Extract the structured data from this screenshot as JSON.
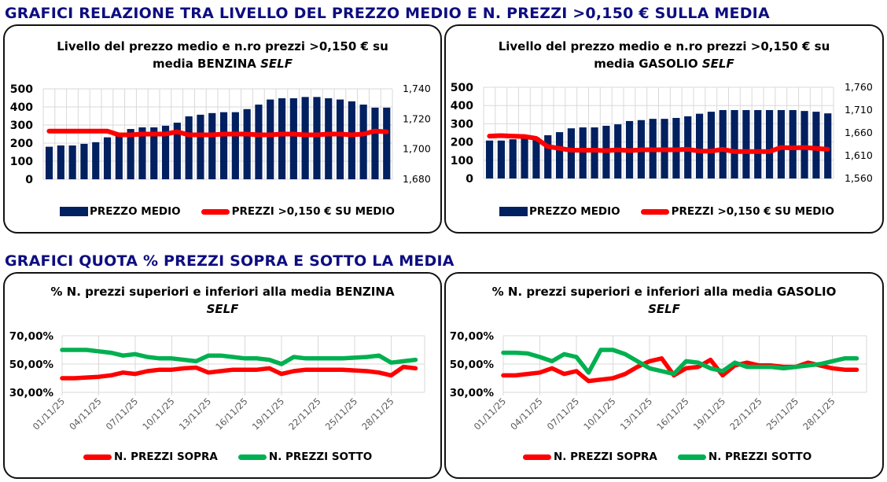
{
  "headings": {
    "top": "GRAFICI RELAZIONE TRA LIVELLO DEL PREZZO MEDIO E N. PREZZI >0,150 € SULLA MEDIA",
    "bottom": "GRAFICI QUOTA % PREZZI SOPRA E SOTTO LA MEDIA"
  },
  "colors": {
    "heading": "#0d0d80",
    "bar": "#002060",
    "red": "#ff0000",
    "green": "#00b050",
    "grid": "#d9d9d9"
  },
  "chart_data": [
    {
      "type": "bar",
      "title_line1": "Livello del prezzo medio e n.ro prezzi >0,150 € su",
      "title_line2": "media BENZINA ",
      "title_italic": "SELF",
      "legend": [
        "PREZZO MEDIO",
        "PREZZI >0,150 € SU MEDIO"
      ],
      "left_ticks": [
        "500",
        "400",
        "300",
        "200",
        "100",
        "0"
      ],
      "right_ticks": [
        "1,740",
        "1,720",
        "1,700",
        "1,680"
      ],
      "ylim": [
        0,
        500
      ],
      "y2lim": [
        1680,
        1740
      ],
      "bars": [
        180,
        187,
        187,
        196,
        205,
        232,
        240,
        278,
        287,
        287,
        296,
        313,
        348,
        357,
        366,
        371,
        371,
        388,
        413,
        441,
        448,
        448,
        455,
        455,
        448,
        441,
        431,
        413,
        396,
        396
      ],
      "line": [
        1712,
        1712,
        1712,
        1712,
        1712,
        1712,
        1709.5,
        1709.5,
        1710,
        1710,
        1710,
        1711.5,
        1709.5,
        1709.5,
        1709.5,
        1710,
        1710,
        1710,
        1709.5,
        1709.5,
        1710,
        1710,
        1709.5,
        1709.5,
        1710,
        1710,
        1709.5,
        1710,
        1712,
        1711.5
      ]
    },
    {
      "type": "bar",
      "title_line1": "Livello del prezzo medio e n.ro prezzi >0,150 € su",
      "title_line2": "media GASOLIO ",
      "title_italic": "SELF",
      "legend": [
        "PREZZO MEDIO",
        "PREZZI >0,150 € SU MEDIO"
      ],
      "left_ticks": [
        "500",
        "400",
        "300",
        "200",
        "100",
        "0"
      ],
      "right_ticks": [
        "1,760",
        "1,710",
        "1,660",
        "1,610",
        "1,560"
      ],
      "ylim": [
        0,
        500
      ],
      "y2lim": [
        1560,
        1760
      ],
      "bars": [
        208,
        208,
        215,
        220,
        225,
        237,
        254,
        275,
        280,
        280,
        289,
        297,
        315,
        320,
        327,
        327,
        332,
        341,
        355,
        366,
        375,
        375,
        375,
        375,
        375,
        375,
        375,
        370,
        366,
        357
      ],
      "line": [
        1653,
        1654,
        1653,
        1652,
        1648,
        1630,
        1626,
        1622,
        1622,
        1622,
        1621,
        1623,
        1621,
        1623,
        1623,
        1623,
        1623,
        1624,
        1620,
        1620,
        1624,
        1619,
        1619,
        1619,
        1619,
        1628,
        1627,
        1628,
        1626,
        1624
      ]
    },
    {
      "type": "line",
      "title_line1": "% N. prezzi superiori e inferiori alla media BENZINA",
      "title_line2": "",
      "title_italic": "SELF",
      "legend": [
        "N. PREZZI SOPRA",
        "N. PREZZI SOTTO"
      ],
      "y_ticks": [
        "70,00%",
        "50,00%",
        "30,00%"
      ],
      "ylim": [
        30,
        70
      ],
      "x_labels": [
        "01/11/25",
        "04/11/25",
        "07/11/25",
        "10/11/25",
        "13/11/25",
        "16/11/25",
        "19/11/25",
        "22/11/25",
        "25/11/25",
        "28/11/25"
      ],
      "series": [
        {
          "name": "N. PREZZI SOPRA",
          "values": [
            40,
            40,
            40.5,
            41,
            42,
            44,
            43,
            45,
            46,
            46,
            47,
            47.5,
            44,
            45,
            46,
            46,
            46,
            47,
            43,
            45,
            46,
            46,
            46,
            46,
            45.5,
            45,
            44,
            42,
            48,
            47
          ]
        },
        {
          "name": "N. PREZZI SOTTO",
          "values": [
            60,
            60,
            60,
            59,
            58,
            56,
            57,
            55,
            54,
            54,
            53,
            52,
            56,
            56,
            55,
            54,
            54,
            53,
            50,
            55,
            54,
            54,
            54,
            54,
            54.5,
            55,
            56,
            51,
            52,
            53
          ]
        }
      ]
    },
    {
      "type": "line",
      "title_line1": "% N. prezzi superiori e inferiori alla media GASOLIO",
      "title_line2": "",
      "title_italic": "SELF",
      "legend": [
        "N. PREZZI SOPRA",
        "N. PREZZI SOTTO"
      ],
      "y_ticks": [
        "70,00%",
        "50,00%",
        "30,00%"
      ],
      "ylim": [
        30,
        70
      ],
      "x_labels": [
        "01/11/25",
        "04/11/25",
        "07/11/25",
        "10/11/25",
        "13/11/25",
        "16/11/25",
        "19/11/25",
        "22/11/25",
        "25/11/25",
        "28/11/25"
      ],
      "series": [
        {
          "name": "N. PREZZI SOPRA",
          "values": [
            42,
            42,
            43,
            44,
            47,
            43,
            45,
            38,
            39,
            40,
            43,
            48,
            52,
            54,
            42,
            47,
            48,
            53,
            42,
            49,
            51,
            49,
            49,
            48,
            48,
            51,
            49,
            47,
            46,
            46
          ]
        },
        {
          "name": "N. PREZZI SOTTO",
          "values": [
            58,
            58,
            57.5,
            55,
            52,
            57,
            55,
            44,
            60,
            60,
            57,
            52,
            47,
            45,
            43,
            52,
            51,
            47,
            45,
            51,
            48,
            48,
            48,
            47,
            48,
            49,
            50,
            52,
            54,
            54
          ]
        }
      ]
    }
  ]
}
